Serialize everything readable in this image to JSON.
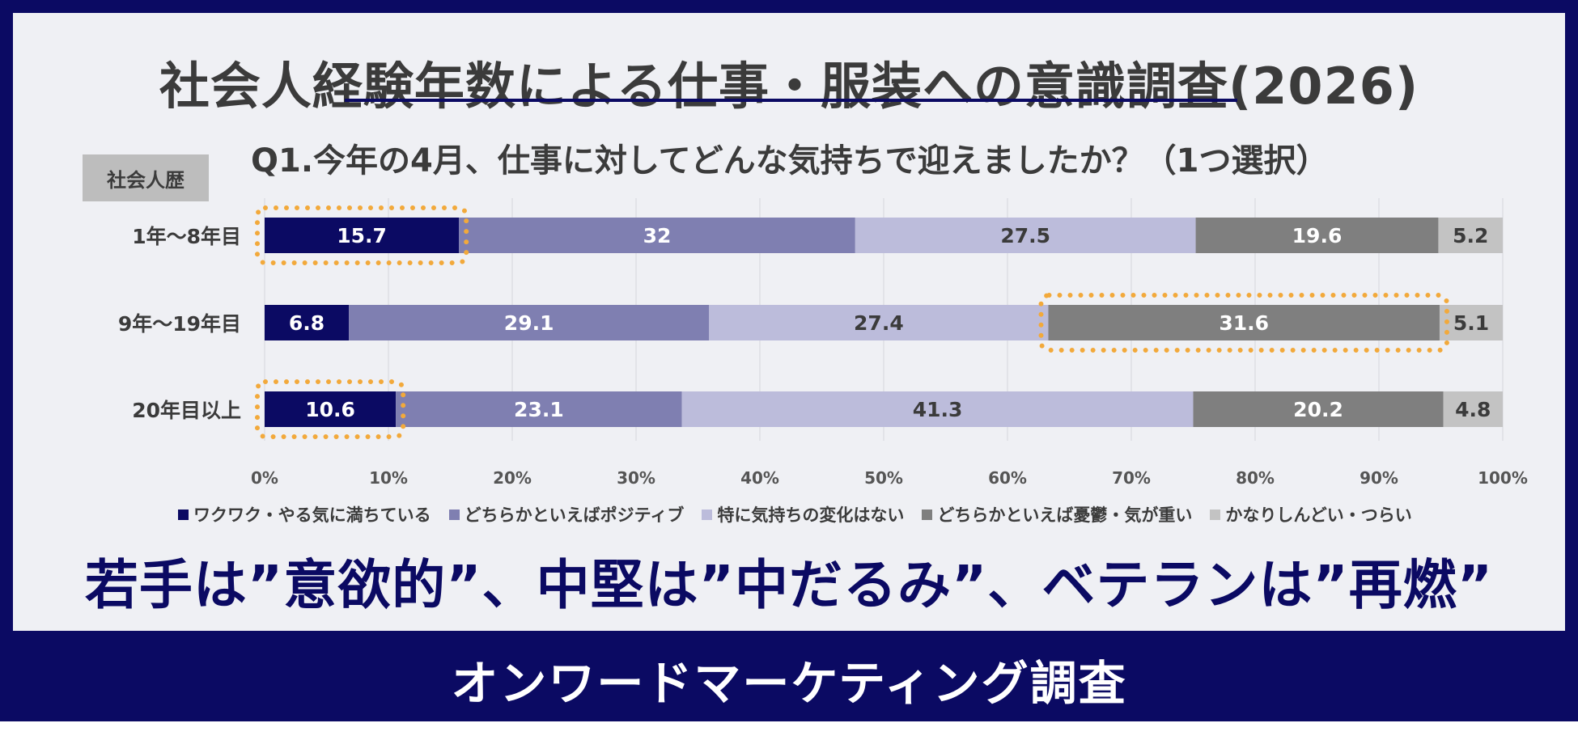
{
  "title": "社会人経験年数による仕事・服装への意識調査(2026)",
  "question": "Q1.今年の4月、仕事に対してどんな気持ちで迎えましたか？（1つ選択）",
  "row_header": "社会人歴",
  "headline": "若手は”意欲的”、中堅は”中だるみ”、ベテランは”再燃”",
  "footer": "オンワードマーケティング調査",
  "colors": {
    "frame": "#0b0a63",
    "panel": "#eff0f4",
    "highlight": "#f2a93b"
  },
  "chart_data": {
    "type": "bar",
    "orientation": "horizontal",
    "stacked": true,
    "categories": [
      "1年～8年目",
      "9年～19年目",
      "20年目以上"
    ],
    "series": [
      {
        "name": "ワクワク・やる気に満ちている",
        "color": "#0b0a63",
        "label_color": "#ffffff",
        "values": [
          15.7,
          6.8,
          10.6
        ]
      },
      {
        "name": "どちらかといえばポジティブ",
        "color": "#7f7fb1",
        "label_color": "#ffffff",
        "values": [
          32,
          29.1,
          23.1
        ]
      },
      {
        "name": "特に気持ちの変化はない",
        "color": "#bcbcdb",
        "label_color": "#3b3b3b",
        "values": [
          27.5,
          27.4,
          41.3
        ]
      },
      {
        "name": "どちらかといえば憂鬱・気が重い",
        "color": "#7f7f7f",
        "label_color": "#ffffff",
        "values": [
          19.6,
          31.6,
          20.2
        ]
      },
      {
        "name": "かなりしんどい・つらい",
        "color": "#c3c3c3",
        "label_color": "#3b3b3b",
        "values": [
          5.2,
          5.1,
          4.8
        ]
      }
    ],
    "xlim": [
      0,
      100
    ],
    "xticks": [
      "0%",
      "10%",
      "20%",
      "30%",
      "40%",
      "50%",
      "60%",
      "70%",
      "80%",
      "90%",
      "100%"
    ],
    "grid": true,
    "legend": "bottom",
    "highlights": [
      {
        "category": "1年～8年目",
        "series": "ワクワク・やる気に満ちている"
      },
      {
        "category": "9年～19年目",
        "series": "どちらかといえば憂鬱・気が重い"
      },
      {
        "category": "20年目以上",
        "series": "ワクワク・やる気に満ちている"
      }
    ]
  }
}
